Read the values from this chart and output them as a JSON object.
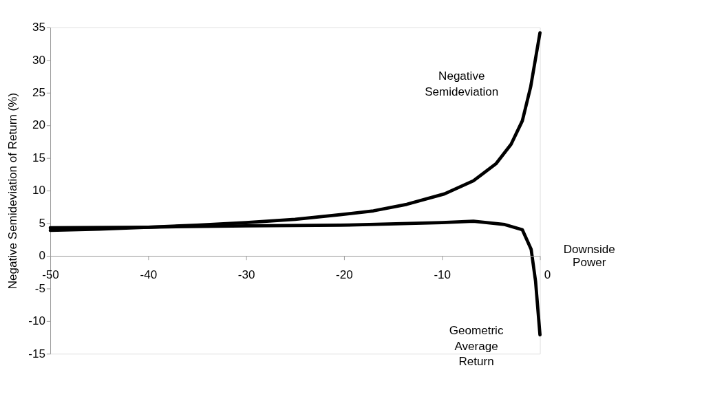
{
  "chart_data": {
    "type": "line",
    "xlabel": "Downside Power",
    "ylabel": "Negative Semideviation  of Return (%)",
    "xlim": [
      -50,
      0
    ],
    "xticks": [
      -50,
      -40,
      -30,
      -20,
      -10,
      0
    ],
    "ylim": [
      -15,
      35
    ],
    "yticks": [
      -15,
      -10,
      -5,
      0,
      5,
      10,
      15,
      20,
      25,
      30,
      35
    ],
    "grid": false,
    "legend": false,
    "marker": "none",
    "line_style": "solid",
    "series": [
      {
        "color": "#000000",
        "x": [
          -50,
          -45,
          -40,
          -35,
          -30,
          -25,
          -20.4,
          -17,
          -13.6,
          -9.75,
          -6.8,
          -4.5,
          -2.95,
          -1.8,
          -0.95,
          0
        ],
        "values": [
          3.9,
          4.1,
          4.4,
          4.7,
          5.1,
          5.6,
          6.3,
          6.9,
          7.9,
          9.5,
          11.5,
          14.1,
          17.1,
          20.7,
          25.9,
          34.2
        ]
      },
      {
        "color": "#000000",
        "x": [
          -50,
          -40,
          -30,
          -20.4,
          -10,
          -6.8,
          -3.6,
          -1.8,
          -0.9,
          -0.45,
          0
        ],
        "values": [
          4.3,
          4.4,
          4.6,
          4.7,
          5.1,
          5.3,
          4.8,
          4.0,
          1.0,
          -3.9,
          -12.1
        ]
      }
    ],
    "annotations": [
      "Negative\nSemideviation",
      "Geometric\nAverage\nReturn"
    ]
  }
}
